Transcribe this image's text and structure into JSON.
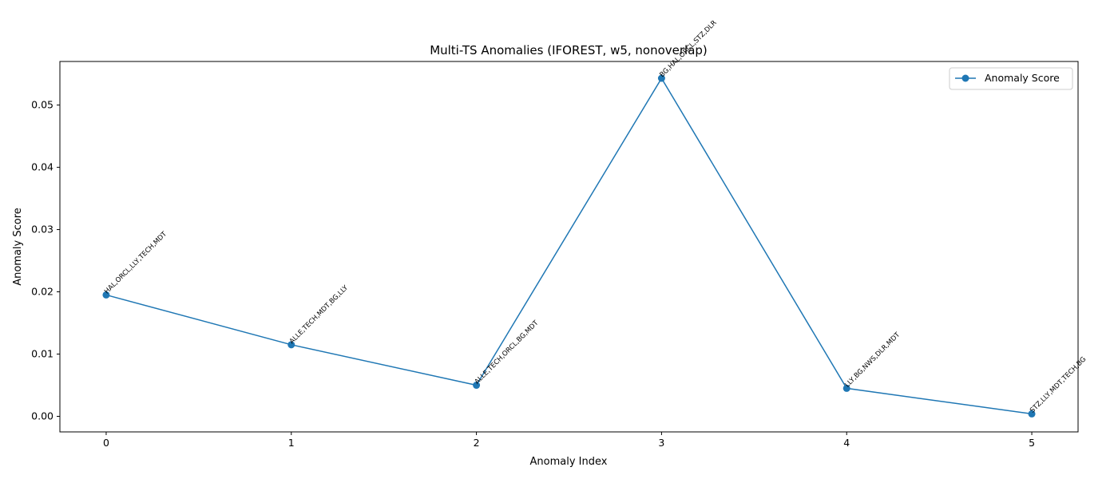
{
  "chart_data": {
    "type": "line",
    "title": "Multi-TS Anomalies (IFOREST, w5, nonoverlap)",
    "xlabel": "Anomaly Index",
    "ylabel": "Anomaly Score",
    "xlim": [
      -0.25,
      5.25
    ],
    "ylim": [
      -0.0025,
      0.057
    ],
    "x_ticks": [
      0,
      1,
      2,
      3,
      4,
      5
    ],
    "y_ticks": [
      0.0,
      0.01,
      0.02,
      0.03,
      0.04,
      0.05
    ],
    "y_tick_labels": [
      "0.00",
      "0.01",
      "0.02",
      "0.03",
      "0.04",
      "0.05"
    ],
    "grid": false,
    "legend_position": "top-right",
    "series": [
      {
        "name": "Anomaly Score",
        "color": "#1f77b4",
        "marker": "circle",
        "x": [
          0,
          1,
          2,
          3,
          4,
          5
        ],
        "y": [
          0.0195,
          0.0115,
          0.005,
          0.0543,
          0.0045,
          0.0004
        ]
      }
    ],
    "annotations": [
      "HAL,ORCL,LLY,TECH,MDT",
      "ALLE,TECH,MDT,BG,LLY",
      "ALLE,TECH,ORCL,BG,MDT",
      "BG,HAL,ORCL,STZ,DLR",
      "LLY,BG,NWS,DLR,MDT",
      "STZ,LLY,MDT,TECH,BG"
    ]
  }
}
